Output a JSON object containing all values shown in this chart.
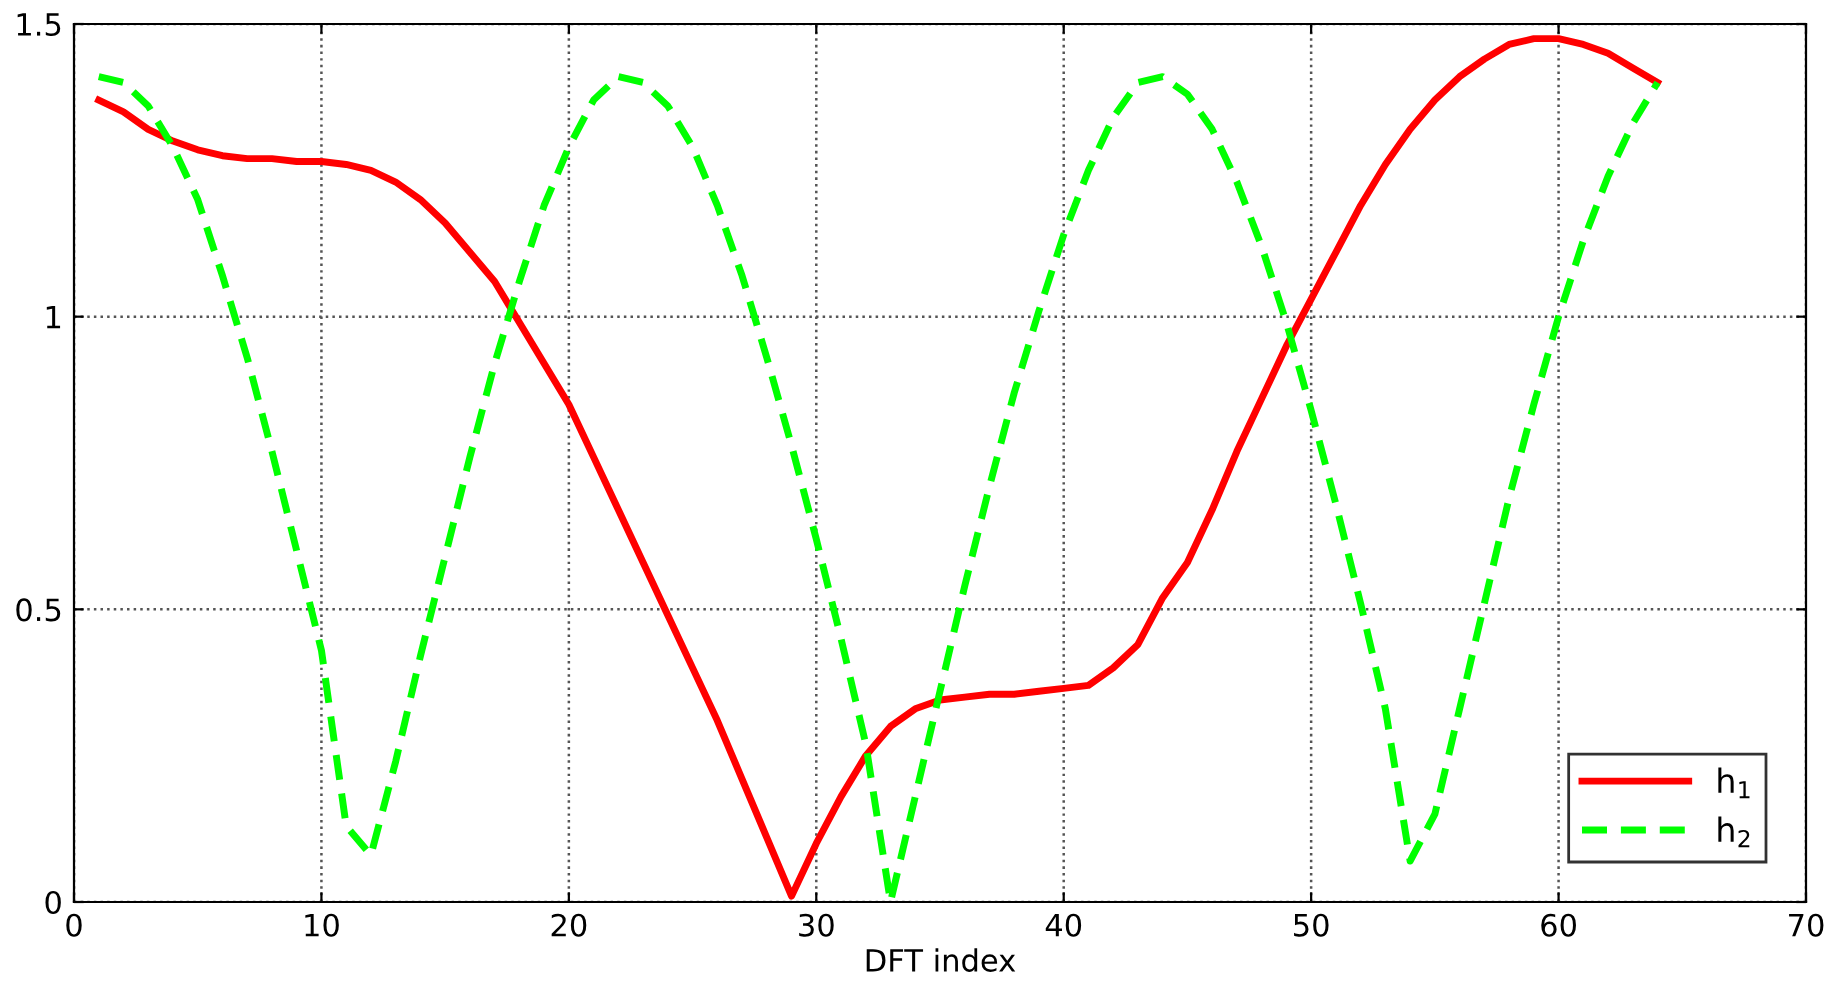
{
  "chart_data": {
    "type": "line",
    "xlabel": "DFT index",
    "x": [
      1,
      2,
      3,
      4,
      5,
      6,
      7,
      8,
      9,
      10,
      11,
      12,
      13,
      14,
      15,
      16,
      17,
      18,
      19,
      20,
      21,
      22,
      23,
      24,
      25,
      26,
      27,
      28,
      29,
      30,
      31,
      32,
      33,
      34,
      35,
      36,
      37,
      38,
      39,
      40,
      41,
      42,
      43,
      44,
      45,
      46,
      47,
      48,
      49,
      50,
      51,
      52,
      53,
      54,
      55,
      56,
      57,
      58,
      59,
      60,
      61,
      62,
      63,
      64
    ],
    "series": [
      {
        "name": "h$_{1}$",
        "color": "#ff0000",
        "line_style": "solid",
        "values": [
          1.37,
          1.35,
          1.32,
          1.3,
          1.285,
          1.275,
          1.27,
          1.27,
          1.265,
          1.265,
          1.26,
          1.25,
          1.23,
          1.2,
          1.16,
          1.11,
          1.06,
          0.99,
          0.92,
          0.85,
          0.76,
          0.67,
          0.58,
          0.49,
          0.4,
          0.31,
          0.21,
          0.11,
          0.01,
          0.1,
          0.18,
          0.25,
          0.3,
          0.33,
          0.345,
          0.35,
          0.355,
          0.355,
          0.36,
          0.365,
          0.37,
          0.4,
          0.44,
          0.52,
          0.58,
          0.67,
          0.77,
          0.86,
          0.95,
          1.03,
          1.11,
          1.19,
          1.26,
          1.32,
          1.37,
          1.41,
          1.44,
          1.465,
          1.475,
          1.475,
          1.465,
          1.45,
          1.425,
          1.4
        ]
      },
      {
        "name": "h$_{2}$",
        "color": "#00ff00",
        "line_style": "dashed",
        "values": [
          1.41,
          1.4,
          1.36,
          1.29,
          1.2,
          1.07,
          0.93,
          0.77,
          0.6,
          0.43,
          0.13,
          0.08,
          0.24,
          0.42,
          0.59,
          0.76,
          0.92,
          1.06,
          1.19,
          1.29,
          1.37,
          1.41,
          1.4,
          1.36,
          1.29,
          1.19,
          1.07,
          0.93,
          0.78,
          0.62,
          0.45,
          0.27,
          0.0,
          0.18,
          0.36,
          0.54,
          0.71,
          0.87,
          1.01,
          1.14,
          1.25,
          1.34,
          1.4,
          1.41,
          1.38,
          1.32,
          1.23,
          1.12,
          0.99,
          0.84,
          0.68,
          0.51,
          0.33,
          0.07,
          0.15,
          0.33,
          0.51,
          0.69,
          0.85,
          1.0,
          1.13,
          1.24,
          1.33,
          1.4
        ]
      }
    ],
    "xlim": [
      0,
      70
    ],
    "ylim": [
      0,
      1.5
    ],
    "xticks": [
      0,
      10,
      20,
      30,
      40,
      50,
      60,
      70
    ],
    "yticks": [
      0,
      0.5,
      1,
      1.5
    ],
    "grid": true,
    "legend": "bottom right",
    "marker": "none"
  }
}
